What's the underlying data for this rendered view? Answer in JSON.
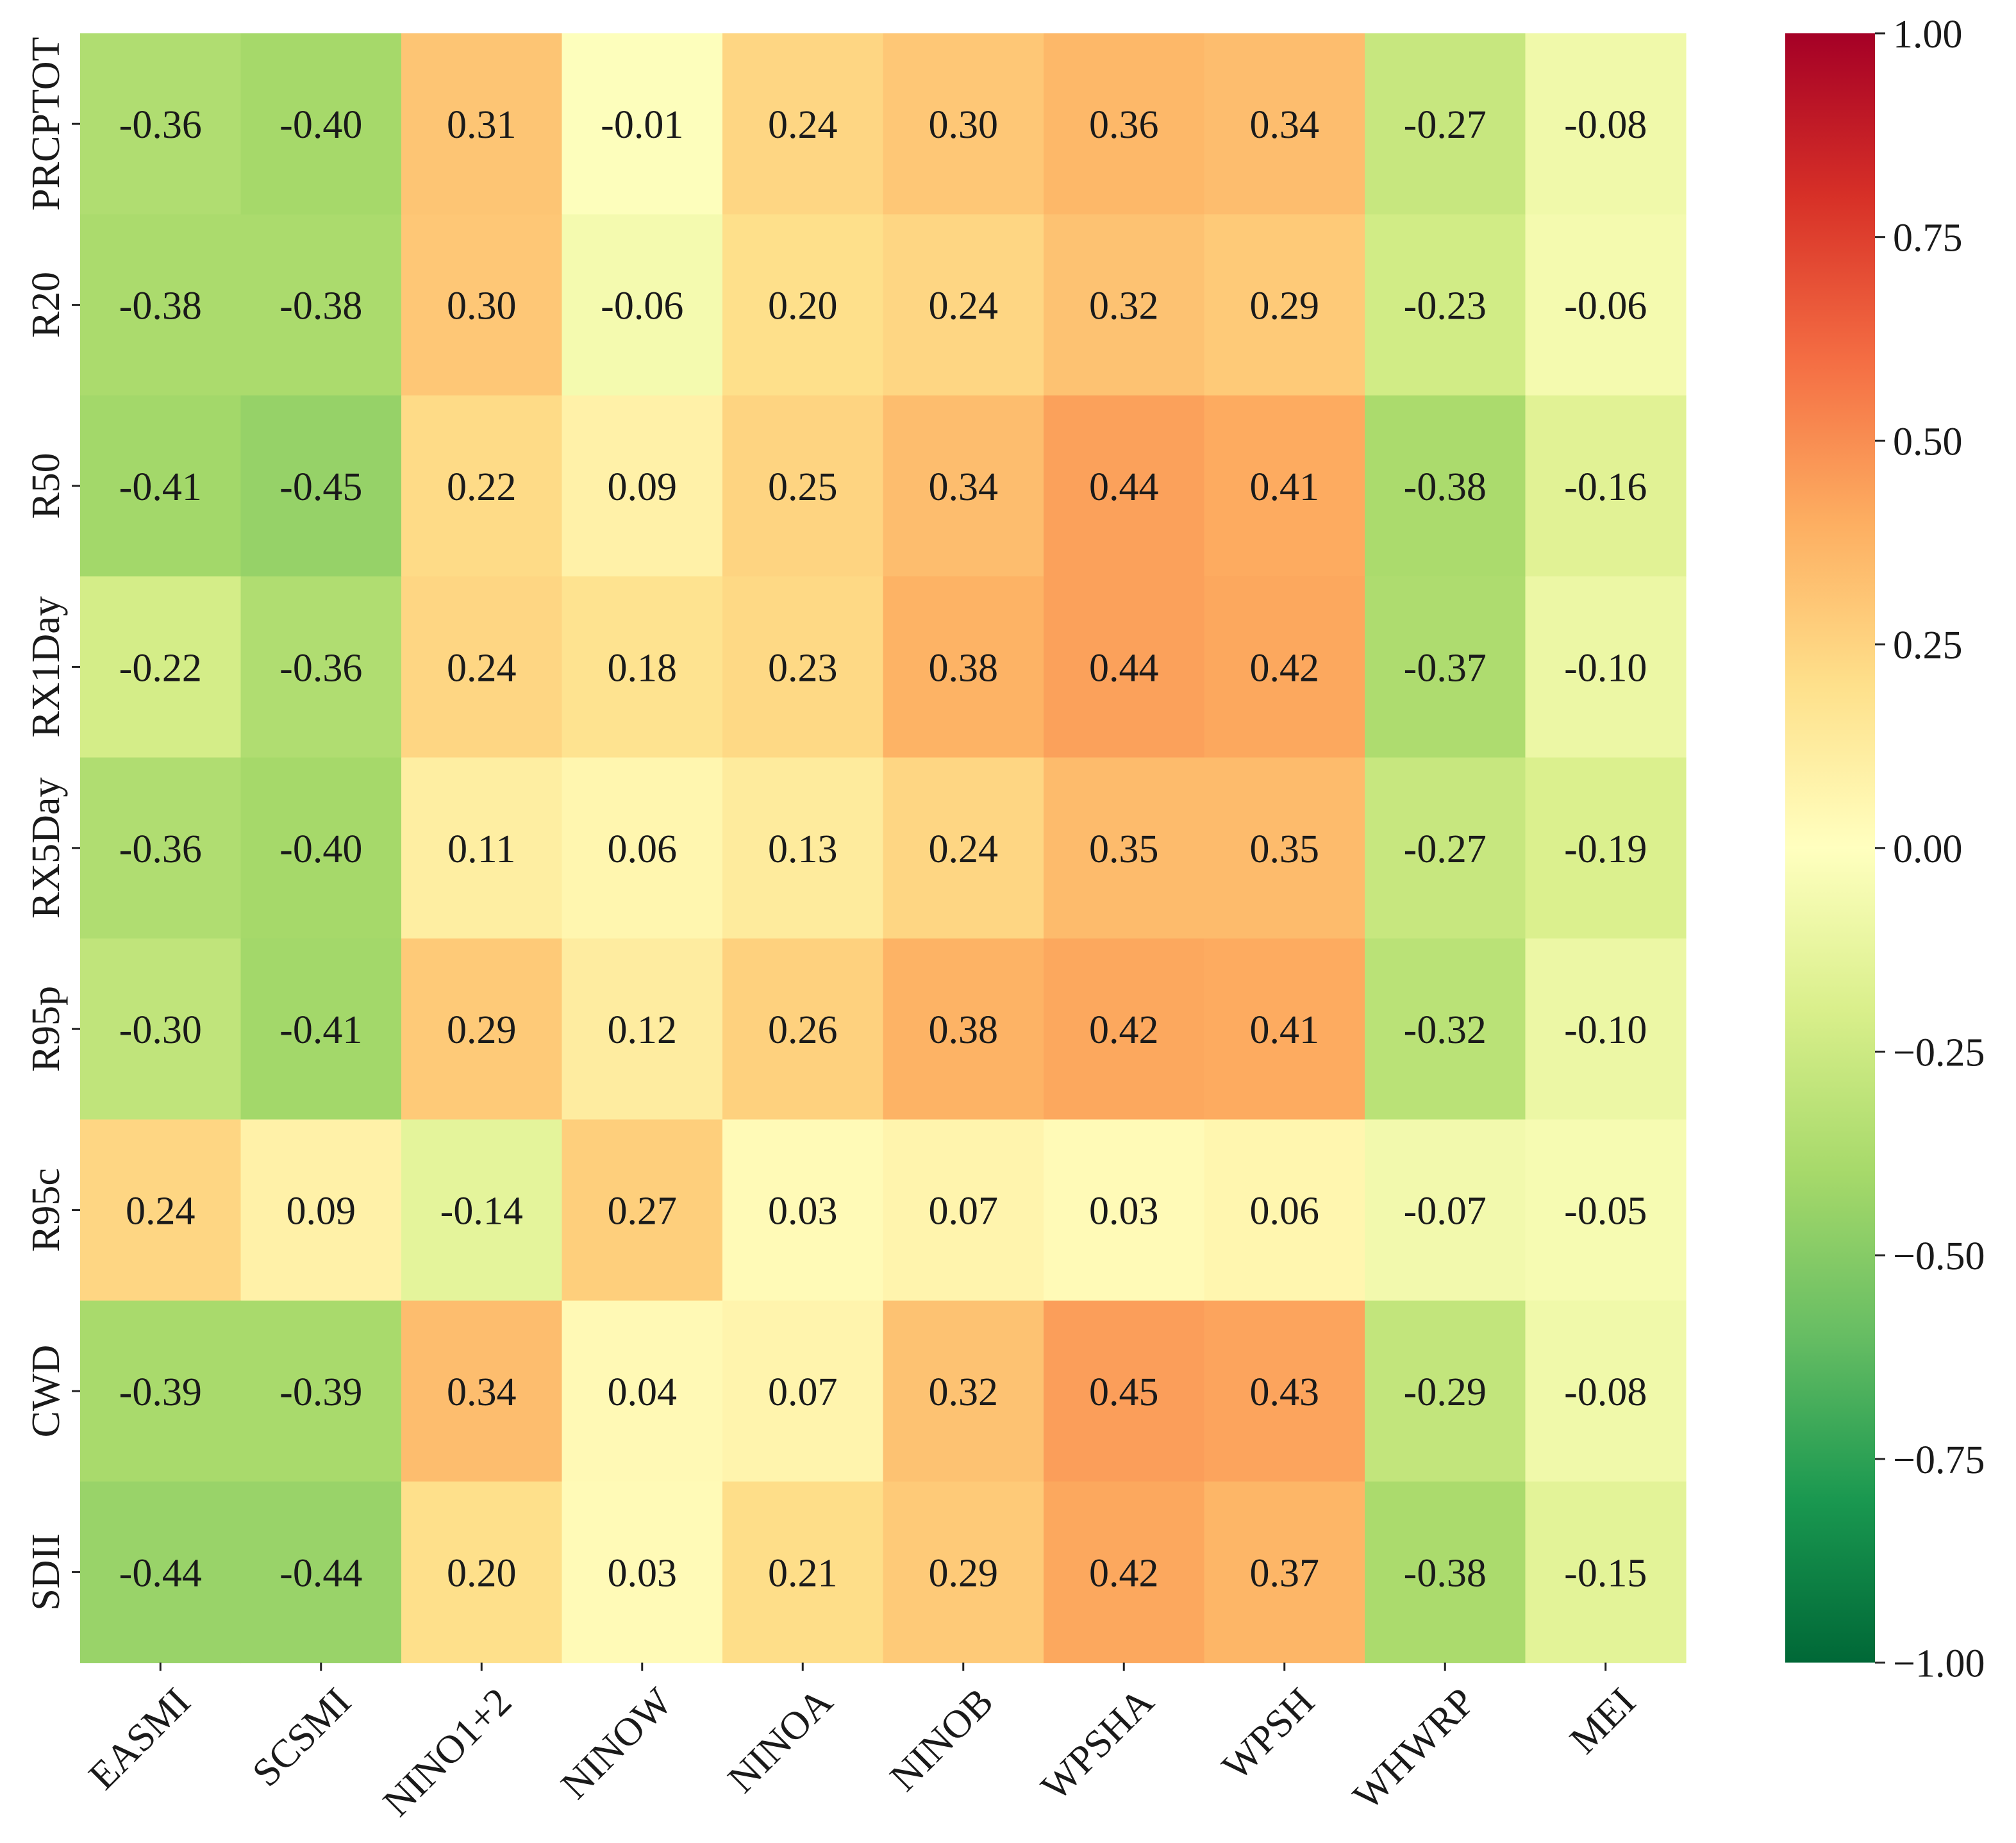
{
  "chart_data": {
    "type": "heatmap",
    "title": "",
    "xlabel": "",
    "ylabel": "",
    "x_labels": [
      "EASMI",
      "SCSMI",
      "NINO1+2",
      "NINOW",
      "NINOA",
      "NINOB",
      "WPSHA",
      "WPSH",
      "WHWRP",
      "MEI"
    ],
    "y_labels": [
      "PRCPTOT",
      "R20",
      "R50",
      "RX1Day",
      "RX5Day",
      "R95p",
      "R95c",
      "CWD",
      "SDII"
    ],
    "values": [
      [
        -0.36,
        -0.4,
        0.31,
        -0.01,
        0.24,
        0.3,
        0.36,
        0.34,
        -0.27,
        -0.08
      ],
      [
        -0.38,
        -0.38,
        0.3,
        -0.06,
        0.2,
        0.24,
        0.32,
        0.29,
        -0.23,
        -0.06
      ],
      [
        -0.41,
        -0.45,
        0.22,
        0.09,
        0.25,
        0.34,
        0.44,
        0.41,
        -0.38,
        -0.16
      ],
      [
        -0.22,
        -0.36,
        0.24,
        0.18,
        0.23,
        0.38,
        0.44,
        0.42,
        -0.37,
        -0.1
      ],
      [
        -0.36,
        -0.4,
        0.11,
        0.06,
        0.13,
        0.24,
        0.35,
        0.35,
        -0.27,
        -0.19
      ],
      [
        -0.3,
        -0.41,
        0.29,
        0.12,
        0.26,
        0.38,
        0.42,
        0.41,
        -0.32,
        -0.1
      ],
      [
        0.24,
        0.09,
        -0.14,
        0.27,
        0.03,
        0.07,
        0.03,
        0.06,
        -0.07,
        -0.05
      ],
      [
        -0.39,
        -0.39,
        0.34,
        0.04,
        0.07,
        0.32,
        0.45,
        0.43,
        -0.29,
        -0.08
      ],
      [
        -0.44,
        -0.44,
        0.2,
        0.03,
        0.21,
        0.29,
        0.42,
        0.37,
        -0.38,
        -0.15
      ]
    ],
    "cell_labels": [
      [
        "-0.36",
        "-0.40",
        "0.31",
        "-0.01",
        "0.24",
        "0.30",
        "0.36",
        "0.34",
        "-0.27",
        "-0.08"
      ],
      [
        "-0.38",
        "-0.38",
        "0.30",
        "-0.06",
        "0.20",
        "0.24",
        "0.32",
        "0.29",
        "-0.23",
        "-0.06"
      ],
      [
        "-0.41",
        "-0.45",
        "0.22",
        "0.09",
        "0.25",
        "0.34",
        "0.44",
        "0.41",
        "-0.38",
        "-0.16"
      ],
      [
        "-0.22",
        "-0.36",
        "0.24",
        "0.18",
        "0.23",
        "0.38",
        "0.44",
        "0.42",
        "-0.37",
        "-0.10"
      ],
      [
        "-0.36",
        "-0.40",
        "0.11",
        "0.06",
        "0.13",
        "0.24",
        "0.35",
        "0.35",
        "-0.27",
        "-0.19"
      ],
      [
        "-0.30",
        "-0.41",
        "0.29",
        "0.12",
        "0.26",
        "0.38",
        "0.42",
        "0.41",
        "-0.32",
        "-0.10"
      ],
      [
        "0.24",
        "0.09",
        "-0.14",
        "0.27",
        "0.03",
        "0.07",
        "0.03",
        "0.06",
        "-0.07",
        "-0.05"
      ],
      [
        "-0.39",
        "-0.39",
        "0.34",
        "0.04",
        "0.07",
        "0.32",
        "0.45",
        "0.43",
        "-0.29",
        "-0.08"
      ],
      [
        "-0.44",
        "-0.44",
        "0.20",
        "0.03",
        "0.21",
        "0.29",
        "0.42",
        "0.37",
        "-0.38",
        "-0.15"
      ]
    ],
    "colormap": {
      "name": "RdYlGn_r",
      "vmin": -1.0,
      "vmax": 1.0,
      "stops": [
        {
          "value": -1.0,
          "color": "#006837"
        },
        {
          "value": -0.8,
          "color": "#1a9850"
        },
        {
          "value": -0.6,
          "color": "#66bd63"
        },
        {
          "value": -0.4,
          "color": "#a6d96a"
        },
        {
          "value": -0.2,
          "color": "#d9ef8b"
        },
        {
          "value": 0.0,
          "color": "#ffffbf"
        },
        {
          "value": 0.2,
          "color": "#fee08b"
        },
        {
          "value": 0.4,
          "color": "#fdae61"
        },
        {
          "value": 0.6,
          "color": "#f46d43"
        },
        {
          "value": 0.8,
          "color": "#d73027"
        },
        {
          "value": 1.0,
          "color": "#a50026"
        }
      ]
    },
    "colorbar": {
      "position": "right",
      "ticks": [
        1.0,
        0.75,
        0.5,
        0.25,
        0.0,
        -0.25,
        -0.5,
        -0.75,
        -1.0
      ],
      "tick_labels": [
        "1.00",
        "0.75",
        "0.50",
        "0.25",
        "0.00",
        "−0.25",
        "−0.50",
        "−0.75",
        "−1.00"
      ]
    },
    "text_color": "#1a1a1a"
  }
}
